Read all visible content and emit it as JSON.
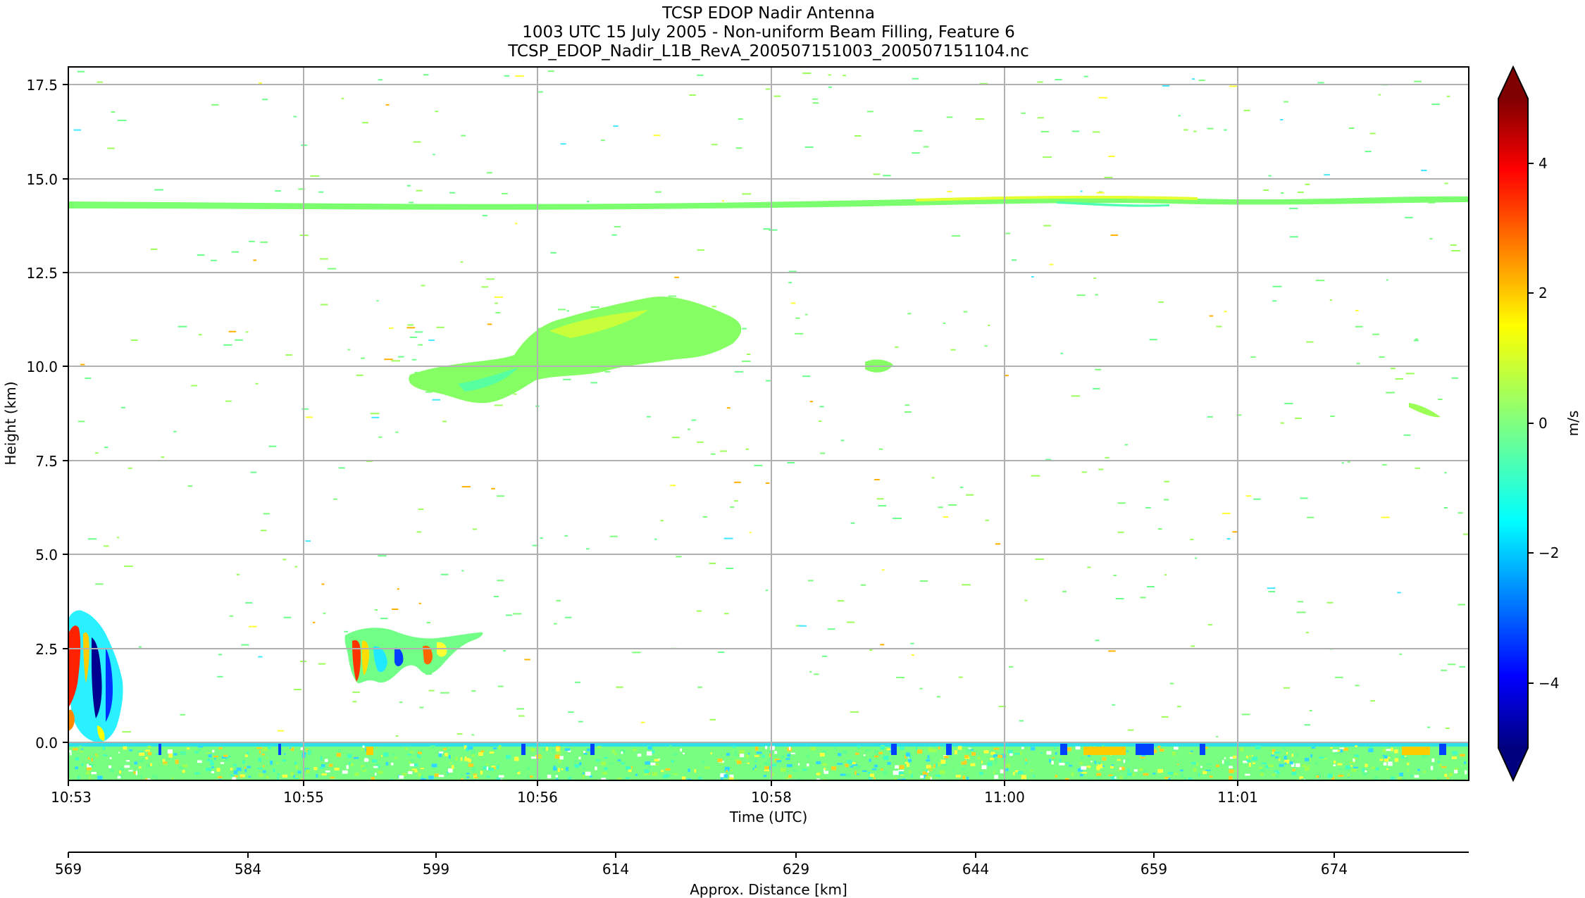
{
  "chart_data": {
    "type": "heatmap",
    "title_lines": [
      "TCSP EDOP Nadir Antenna",
      "1003 UTC 15 July 2005 - Non-uniform Beam Filling, Feature 6",
      "TCSP_EDOP_Nadir_L1B_RevA_200507151003_200507151104.nc"
    ],
    "xlabel": "Time (UTC)",
    "ylabel": "Height (km)",
    "x2label": "Approx. Distance [km]",
    "colorbar_label": "m/s",
    "colorbar_colormap": "jet",
    "colorbar_extend": "both",
    "x_ticks": [
      "10:53",
      "10:55",
      "10:56",
      "10:58",
      "11:00",
      "11:01"
    ],
    "x2_ticks": [
      "569",
      "584",
      "599",
      "614",
      "629",
      "644",
      "659",
      "674"
    ],
    "y_ticks": [
      "0.0",
      "2.5",
      "5.0",
      "7.5",
      "10.0",
      "12.5",
      "15.0",
      "17.5"
    ],
    "ylim": [
      -1,
      18
    ],
    "colorbar_range": [
      -5,
      5
    ],
    "colorbar_ticks": [
      "−4",
      "−2",
      "0",
      "2",
      "4"
    ],
    "grid": true,
    "features": [
      {
        "name": "surface return",
        "height_km": [
          -1.0,
          0.1
        ],
        "velocity_m_s": "mixed -2 to 2"
      },
      {
        "name": "upper layer",
        "height_km": [
          14.2,
          14.6
        ],
        "velocity_m_s": "about 0"
      },
      {
        "name": "anvil cloud",
        "height_km": [
          9.0,
          11.8
        ],
        "velocity_m_s": "about 0"
      },
      {
        "name": "convective cell 1",
        "height_km": [
          0.0,
          3.5
        ],
        "velocity_m_s": "-5 to 4"
      },
      {
        "name": "convective cell 2",
        "height_km": [
          1.6,
          3.1
        ],
        "velocity_m_s": "-3 to 4"
      }
    ]
  }
}
